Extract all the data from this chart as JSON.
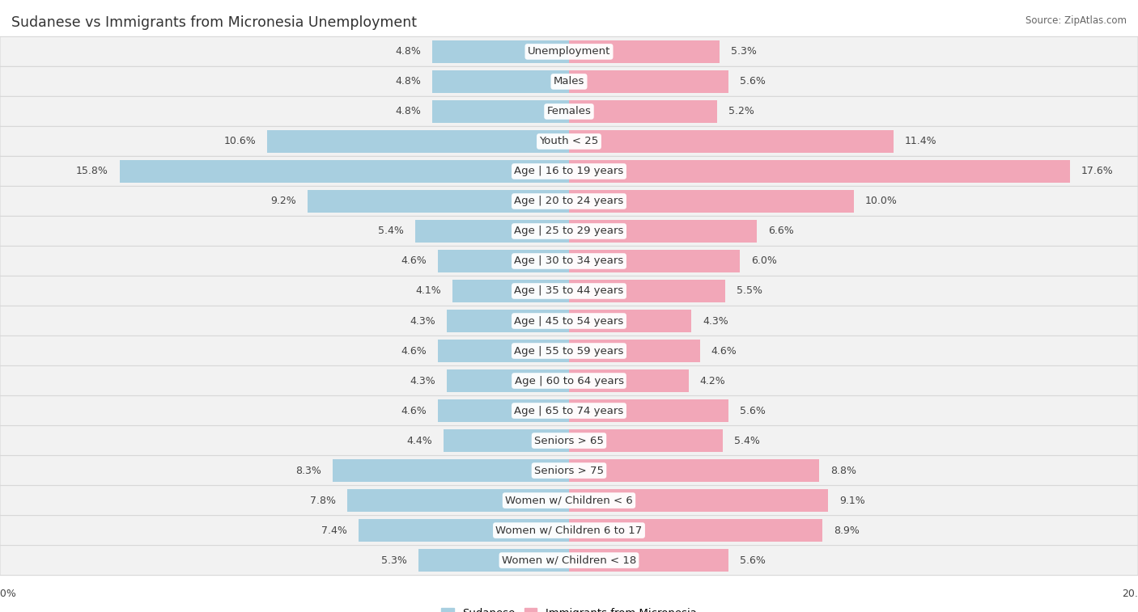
{
  "title": "Sudanese vs Immigrants from Micronesia Unemployment",
  "source": "Source: ZipAtlas.com",
  "categories": [
    "Unemployment",
    "Males",
    "Females",
    "Youth < 25",
    "Age | 16 to 19 years",
    "Age | 20 to 24 years",
    "Age | 25 to 29 years",
    "Age | 30 to 34 years",
    "Age | 35 to 44 years",
    "Age | 45 to 54 years",
    "Age | 55 to 59 years",
    "Age | 60 to 64 years",
    "Age | 65 to 74 years",
    "Seniors > 65",
    "Seniors > 75",
    "Women w/ Children < 6",
    "Women w/ Children 6 to 17",
    "Women w/ Children < 18"
  ],
  "sudanese": [
    4.8,
    4.8,
    4.8,
    10.6,
    15.8,
    9.2,
    5.4,
    4.6,
    4.1,
    4.3,
    4.6,
    4.3,
    4.6,
    4.4,
    8.3,
    7.8,
    7.4,
    5.3
  ],
  "micronesia": [
    5.3,
    5.6,
    5.2,
    11.4,
    17.6,
    10.0,
    6.6,
    6.0,
    5.5,
    4.3,
    4.6,
    4.2,
    5.6,
    5.4,
    8.8,
    9.1,
    8.9,
    5.6
  ],
  "blue_color": "#a8cfe0",
  "pink_color": "#f2a7b8",
  "bg_color": "#ffffff",
  "row_bg_color": "#f2f2f2",
  "max_val": 20.0,
  "label_fontsize": 9.5,
  "value_fontsize": 9.0,
  "title_fontsize": 12.5
}
